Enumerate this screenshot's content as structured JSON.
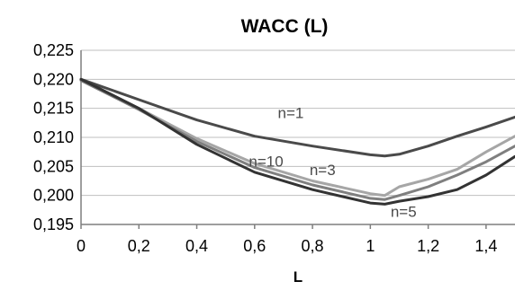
{
  "chart_data": {
    "type": "line",
    "title": "WACC (L)",
    "xlabel": "L",
    "ylabel": "",
    "xlim": [
      0,
      1.5
    ],
    "ylim": [
      0.195,
      0.225
    ],
    "x_ticks": [
      0,
      0.2,
      0.4,
      0.6,
      0.8,
      1,
      1.2,
      1.4
    ],
    "x_tick_labels": [
      "0",
      "0,2",
      "0,4",
      "0,6",
      "0,8",
      "1",
      "1,2",
      "1,4"
    ],
    "y_ticks": [
      0.195,
      0.2,
      0.205,
      0.21,
      0.215,
      0.22,
      0.225
    ],
    "y_tick_labels": [
      "0,195",
      "0,200",
      "0,205",
      "0,210",
      "0,215",
      "0,220",
      "0,225"
    ],
    "grid": true,
    "legend": "none",
    "series": [
      {
        "name": "n=1",
        "color": "#4a4a4a",
        "points": [
          [
            0,
            0.22
          ],
          [
            0.2,
            0.2165
          ],
          [
            0.4,
            0.213
          ],
          [
            0.6,
            0.2102
          ],
          [
            0.8,
            0.2085
          ],
          [
            1.0,
            0.207
          ],
          [
            1.05,
            0.2068
          ],
          [
            1.1,
            0.2071
          ],
          [
            1.2,
            0.2085
          ],
          [
            1.3,
            0.2102
          ],
          [
            1.4,
            0.2118
          ],
          [
            1.5,
            0.2135
          ]
        ]
      },
      {
        "name": "n=3",
        "color": "#a6a6a6",
        "points": [
          [
            0,
            0.22
          ],
          [
            0.2,
            0.215
          ],
          [
            0.4,
            0.2098
          ],
          [
            0.6,
            0.2055
          ],
          [
            0.8,
            0.2025
          ],
          [
            1.0,
            0.2003
          ],
          [
            1.05,
            0.2
          ],
          [
            1.1,
            0.2015
          ],
          [
            1.2,
            0.2028
          ],
          [
            1.3,
            0.2045
          ],
          [
            1.4,
            0.2075
          ],
          [
            1.5,
            0.2102
          ]
        ]
      },
      {
        "name": "n=5",
        "color": "#333333",
        "points": [
          [
            0,
            0.22
          ],
          [
            0.2,
            0.215
          ],
          [
            0.4,
            0.2088
          ],
          [
            0.6,
            0.204
          ],
          [
            0.8,
            0.201
          ],
          [
            1.0,
            0.1987
          ],
          [
            1.05,
            0.1985
          ],
          [
            1.1,
            0.199
          ],
          [
            1.2,
            0.1998
          ],
          [
            1.3,
            0.201
          ],
          [
            1.4,
            0.2035
          ],
          [
            1.5,
            0.2067
          ]
        ]
      },
      {
        "name": "n=10",
        "color": "#7f7f7f",
        "points": [
          [
            0,
            0.2198
          ],
          [
            0.2,
            0.2148
          ],
          [
            0.4,
            0.2093
          ],
          [
            0.6,
            0.2048
          ],
          [
            0.8,
            0.2018
          ],
          [
            1.0,
            0.1995
          ],
          [
            1.05,
            0.1993
          ],
          [
            1.1,
            0.2
          ],
          [
            1.2,
            0.2015
          ],
          [
            1.3,
            0.2035
          ],
          [
            1.4,
            0.2058
          ],
          [
            1.5,
            0.2085
          ]
        ]
      }
    ],
    "annotations": [
      {
        "text": "n=1",
        "series": "n=1",
        "x": 0.68,
        "y": 0.2133,
        "color": "#4a4a4a"
      },
      {
        "text": "n=10",
        "series": "n=10",
        "x": 0.58,
        "y": 0.205,
        "color": "#4a4a4a"
      },
      {
        "text": "n=3",
        "series": "n=3",
        "x": 0.79,
        "y": 0.2035,
        "color": "#4a4a4a"
      },
      {
        "text": "n=5",
        "series": "n=5",
        "x": 1.07,
        "y": 0.1963,
        "color": "#4a4a4a"
      }
    ]
  }
}
